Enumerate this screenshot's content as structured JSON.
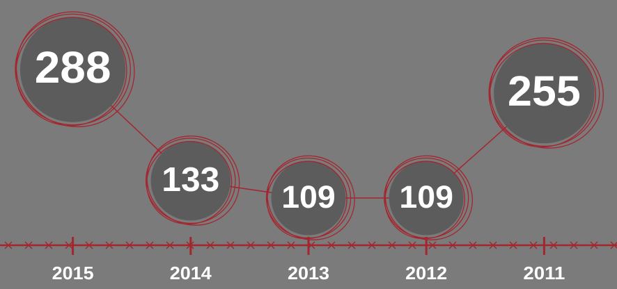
{
  "chart_data": {
    "type": "bubble-line",
    "categories": [
      "2015",
      "2014",
      "2013",
      "2012",
      "2011"
    ],
    "values": [
      288,
      133,
      109,
      109,
      255
    ],
    "color": "#a3262f"
  }
}
